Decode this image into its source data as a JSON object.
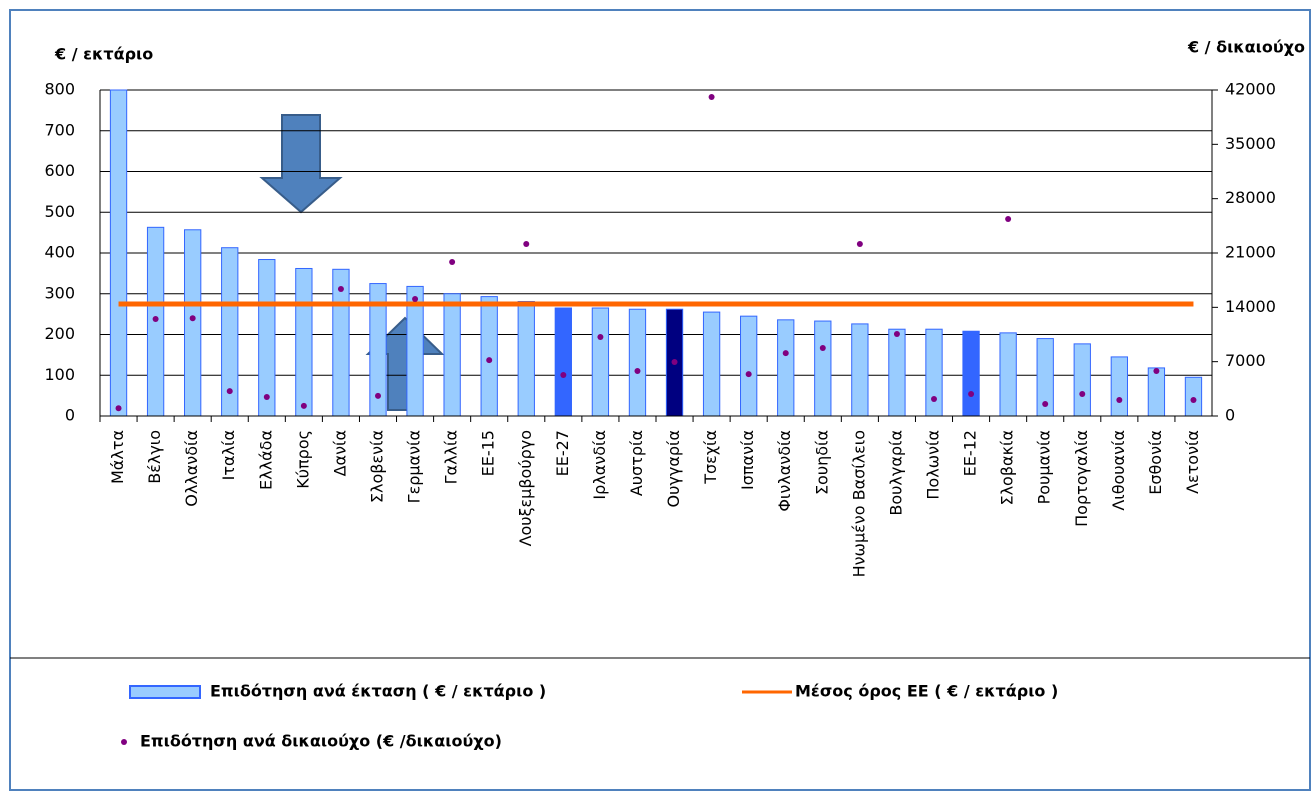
{
  "chart_data": {
    "type": "bar",
    "y_title": "€ / εκτάριο",
    "y2_title": "€ / δικαιούχο",
    "categories": [
      "Μάλτα",
      "Βέλγιο",
      "Ολλανδία",
      "Ιταλία",
      "Ελλάδα",
      "Κύπρος",
      "Δανία",
      "Σλοβενία",
      "Γερμανία",
      "Γαλλία",
      "ΕΕ-15",
      "Λουξεμβούργο",
      "ΕΕ-27",
      "Ιρλανδία",
      "Αυστρία",
      "Ουγγαρία",
      "Τσεχία",
      "Ισπανία",
      "Φινλανδία",
      "Σουηδία",
      "Ηνωμένο Βασίλειο",
      "Βουλγαρία",
      "Πολωνία",
      "ΕΕ-12",
      "Σλοβακία",
      "Ρουμανία",
      "Πορτογαλία",
      "Λιθουανία",
      "Εσθονία",
      "Λετονία"
    ],
    "series": [
      {
        "name": "Επιδότηση ανά έκταση ( € / εκτάριο )",
        "type": "bar",
        "color": "#99ccff",
        "edge": "#3366ff",
        "colors": [
          "#99ccff",
          "#99ccff",
          "#99ccff",
          "#99ccff",
          "#99ccff",
          "#99ccff",
          "#99ccff",
          "#99ccff",
          "#99ccff",
          "#99ccff",
          "#99ccff",
          "#99ccff",
          "#3366ff",
          "#99ccff",
          "#99ccff",
          "#000080",
          "#99ccff",
          "#99ccff",
          "#99ccff",
          "#99ccff",
          "#99ccff",
          "#99ccff",
          "#99ccff",
          "#3366ff",
          "#99ccff",
          "#99ccff",
          "#99ccff",
          "#99ccff",
          "#99ccff",
          "#99ccff"
        ],
        "values": [
          800,
          463,
          457,
          413,
          384,
          362,
          360,
          325,
          318,
          300,
          293,
          281,
          265,
          265,
          262,
          262,
          255,
          245,
          236,
          233,
          226,
          213,
          213,
          208,
          204,
          190,
          177,
          145,
          118,
          95
        ]
      },
      {
        "name": "Μέσος όρος ΕΕ ( € / εκτάριο )",
        "type": "line",
        "color": "#ff6600",
        "values": [
          275,
          275,
          275,
          275,
          275,
          275,
          275,
          275,
          275,
          275,
          275,
          275,
          275,
          275,
          275,
          275,
          275,
          275,
          275,
          275,
          275,
          275,
          275,
          275,
          275,
          275,
          275,
          275,
          275,
          275
        ]
      },
      {
        "name": "Επιδότηση ανά δικαιούχο (€ /δικαιούχο)",
        "type": "scatter",
        "color": "#800080",
        "axis": "y2",
        "values": [
          1000,
          12500,
          12600,
          3200,
          2450,
          1300,
          16360,
          2600,
          15070,
          19840,
          7200,
          22160,
          5280,
          10180,
          5800,
          6960,
          41100,
          5400,
          8100,
          8760,
          22160,
          10560,
          2190,
          2830,
          25380,
          1550,
          2830,
          2060,
          5800,
          2060
        ]
      }
    ],
    "ylim": [
      0,
      800
    ],
    "yticks": [
      0,
      100,
      200,
      300,
      400,
      500,
      600,
      700,
      800
    ],
    "y2lim": [
      0,
      42000
    ],
    "y2ticks": [
      0,
      7000,
      14000,
      21000,
      28000,
      35000,
      42000
    ],
    "grid": true
  }
}
